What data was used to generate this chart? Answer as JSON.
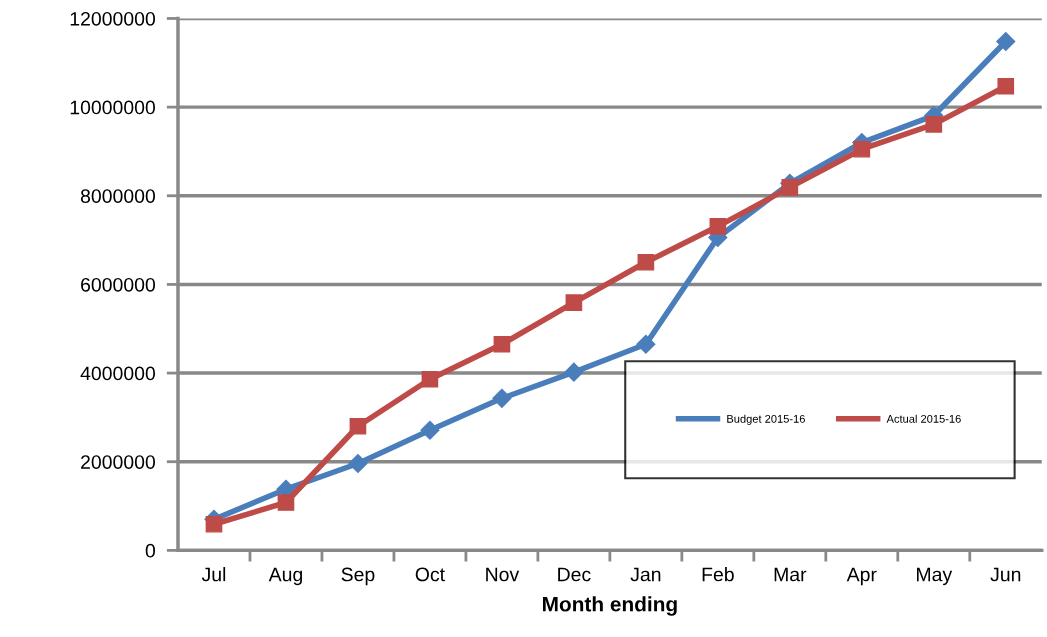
{
  "chart_data": {
    "type": "line",
    "xlabel": "Month ending",
    "categories": [
      "Jul",
      "Aug",
      "Sep",
      "Oct",
      "Nov",
      "Dec",
      "Jan",
      "Feb",
      "Mar",
      "Apr",
      "May",
      "Jun"
    ],
    "series": [
      {
        "name": "Budget 2015-16",
        "color": "#4a7ebb",
        "marker": "diamond",
        "values": [
          700000,
          1380000,
          1960000,
          2710000,
          3430000,
          4020000,
          4650000,
          7060000,
          8280000,
          9200000,
          9810000,
          11480000
        ]
      },
      {
        "name": "Actual 2015-16",
        "color": "#be4b48",
        "marker": "square",
        "values": [
          590000,
          1080000,
          2800000,
          3860000,
          4650000,
          5590000,
          6500000,
          7310000,
          8190000,
          9050000,
          9610000,
          10470000
        ]
      }
    ],
    "ylim": [
      0,
      12000000
    ],
    "yticks": [
      0,
      2000000,
      4000000,
      6000000,
      8000000,
      10000000,
      12000000
    ],
    "grid": "y",
    "legend": "lower right",
    "line_style": "solid"
  }
}
